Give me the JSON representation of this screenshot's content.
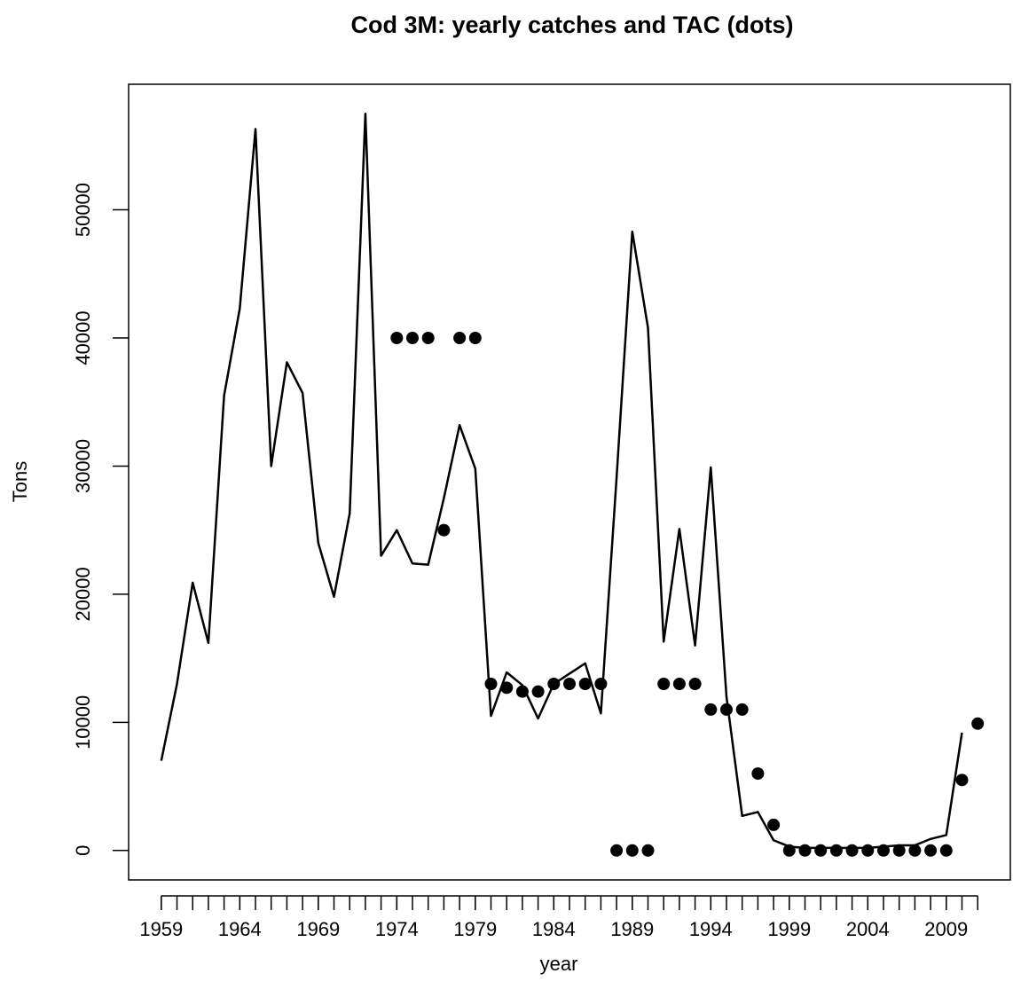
{
  "chart_data": {
    "type": "line",
    "title": "Cod 3M: yearly catches and TAC (dots)",
    "x_label": "year",
    "y_label": "Tons",
    "xlim": [
      1956.92,
      2013.08
    ],
    "ylim": [
      -2300,
      59800
    ],
    "xticks": [
      1959,
      1964,
      1969,
      1974,
      1979,
      1984,
      1989,
      1994,
      1999,
      2004,
      2009
    ],
    "xminorticks": [
      1959,
      1960,
      1961,
      1962,
      1963,
      1964,
      1965,
      1966,
      1967,
      1968,
      1969,
      1970,
      1971,
      1972,
      1973,
      1974,
      1975,
      1976,
      1977,
      1978,
      1979,
      1980,
      1981,
      1982,
      1983,
      1984,
      1985,
      1986,
      1987,
      1988,
      1989,
      1990,
      1991,
      1992,
      1993,
      1994,
      1995,
      1996,
      1997,
      1998,
      1999,
      2000,
      2001,
      2002,
      2003,
      2004,
      2005,
      2006,
      2007,
      2008,
      2009,
      2010,
      2011
    ],
    "yticks": [
      0,
      10000,
      20000,
      30000,
      40000,
      50000
    ],
    "series": [
      {
        "style": "line",
        "color": "#000000",
        "x": [
          1959,
          1960,
          1961,
          1962,
          1963,
          1964,
          1965,
          1966,
          1967,
          1968,
          1969,
          1970,
          1971,
          1972,
          1973,
          1974,
          1975,
          1976,
          1977,
          1978,
          1979,
          1980,
          1981,
          1982,
          1983,
          1984,
          1985,
          1986,
          1987,
          1988,
          1989,
          1990,
          1991,
          1992,
          1993,
          1994,
          1995,
          1996,
          1997,
          1998,
          1999,
          2000,
          2001,
          2002,
          2003,
          2004,
          2005,
          2006,
          2007,
          2008,
          2009,
          2010
        ],
        "values": [
          7000,
          13000,
          20900,
          16200,
          35500,
          42300,
          56300,
          30000,
          38100,
          35700,
          24000,
          19800,
          26300,
          57500,
          23000,
          25000,
          22400,
          22300,
          27500,
          33200,
          29800,
          10500,
          13900,
          12900,
          10300,
          13000,
          13800,
          14600,
          10700,
          29100,
          48300,
          40800,
          16300,
          25100,
          16000,
          29900,
          12000,
          2700,
          3000,
          800,
          300,
          200,
          200,
          200,
          200,
          200,
          300,
          400,
          400,
          900,
          1200,
          9200
        ]
      },
      {
        "style": "points",
        "color": "#000000",
        "x": [
          1974,
          1975,
          1976,
          1977,
          1978,
          1979,
          1980,
          1981,
          1982,
          1983,
          1984,
          1985,
          1986,
          1987,
          1988,
          1989,
          1990,
          1991,
          1992,
          1993,
          1994,
          1995,
          1996,
          1997,
          1998,
          1999,
          2000,
          2001,
          2002,
          2003,
          2004,
          2005,
          2006,
          2007,
          2008,
          2009,
          2010,
          2011
        ],
        "values": [
          40000,
          40000,
          40000,
          25000,
          40000,
          40000,
          13000,
          12700,
          12400,
          12400,
          13000,
          13000,
          13000,
          13000,
          0,
          0,
          0,
          13000,
          13000,
          13000,
          11000,
          11000,
          11000,
          6000,
          2000,
          0,
          0,
          0,
          0,
          0,
          0,
          0,
          0,
          0,
          0,
          0,
          5500,
          9900
        ]
      }
    ]
  }
}
